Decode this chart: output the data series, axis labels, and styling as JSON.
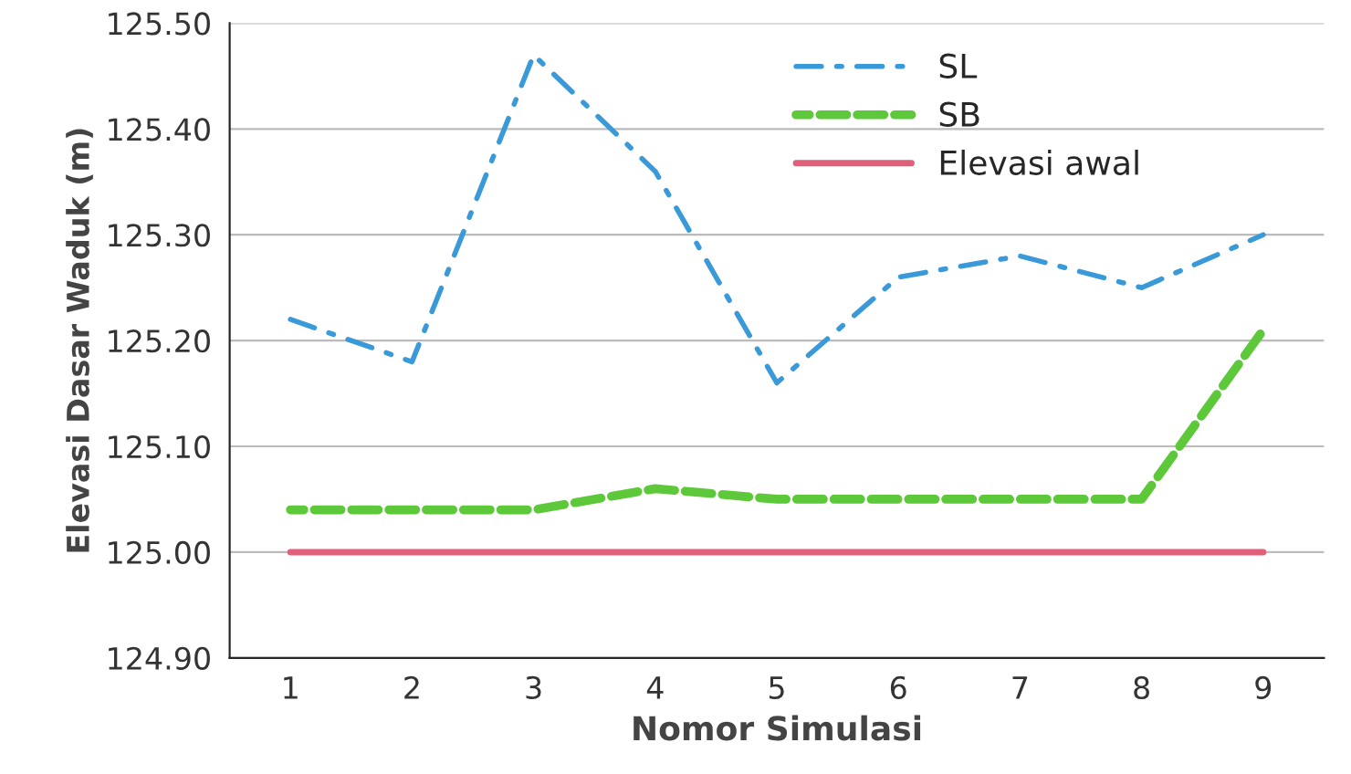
{
  "chart_data": {
    "type": "line",
    "xlabel": "Nomor Simulasi",
    "ylabel": "Elevasi Dasar Waduk (m)",
    "categories": [
      "1",
      "2",
      "3",
      "4",
      "5",
      "6",
      "7",
      "8",
      "9"
    ],
    "series": [
      {
        "name": "SL",
        "color": "#3a9ad9",
        "line_style": "dashdot",
        "values": [
          125.22,
          125.18,
          125.47,
          125.36,
          125.16,
          125.26,
          125.28,
          125.25,
          125.3
        ]
      },
      {
        "name": "SB",
        "color": "#5dc83a",
        "line_style": "dashed",
        "values": [
          125.04,
          125.04,
          125.04,
          125.06,
          125.05,
          125.05,
          125.05,
          125.05,
          125.21
        ]
      },
      {
        "name": "Elevasi awal",
        "color": "#e0607a",
        "line_style": "solid",
        "values": [
          125.0,
          125.0,
          125.0,
          125.0,
          125.0,
          125.0,
          125.0,
          125.0,
          125.0
        ]
      }
    ],
    "ylim": [
      124.9,
      125.5
    ],
    "yticks": [
      {
        "value": 124.9,
        "label": "124.90"
      },
      {
        "value": 125.0,
        "label": "125.00"
      },
      {
        "value": 125.1,
        "label": "125.10"
      },
      {
        "value": 125.2,
        "label": "125.20"
      },
      {
        "value": 125.3,
        "label": "125.30"
      },
      {
        "value": 125.4,
        "label": "125.40"
      },
      {
        "value": 125.5,
        "label": "125.50"
      }
    ],
    "grid": "y",
    "legend": "top right",
    "marker": "none"
  }
}
